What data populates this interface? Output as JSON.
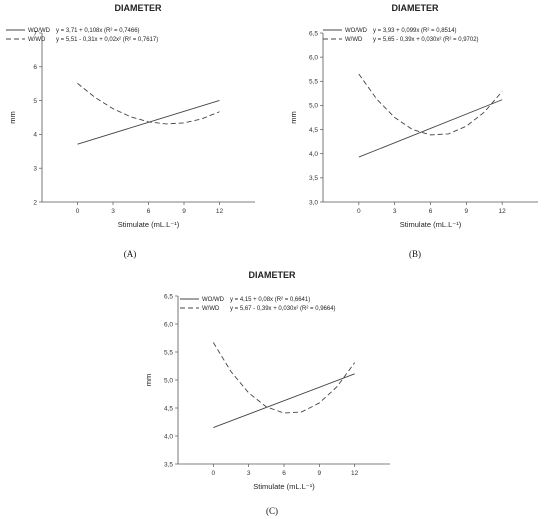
{
  "chart_data": [
    {
      "panel": "(A)",
      "type": "line",
      "title": "DIAMETER",
      "xlabel": "Stimulate (mL.L⁻¹)",
      "ylabel": "mm",
      "xticks": [
        0,
        3,
        6,
        9,
        12
      ],
      "ylim": [
        2,
        7
      ],
      "yticks": [
        "2",
        "3",
        "4",
        "5",
        "6",
        "7"
      ],
      "legend_position": "top-left",
      "series": [
        {
          "name": "WO/WD",
          "style": "solid",
          "equation": "y = 3,71 + 0,108x (R² = 0,7466)",
          "x": [
            0,
            12
          ],
          "y": [
            3.71,
            5.006
          ]
        },
        {
          "name": "W/WD",
          "style": "dashed",
          "equation": "y = 5,51 - 0,31x + 0,02x² (R² = 0,7617)",
          "x": [
            0,
            1.5,
            3,
            4.5,
            6,
            7.5,
            9,
            10.5,
            12
          ],
          "y": [
            5.51,
            5.09,
            4.76,
            4.52,
            4.37,
            4.31,
            4.34,
            4.46,
            4.67
          ]
        }
      ]
    },
    {
      "panel": "(B)",
      "type": "line",
      "title": "DIAMETER",
      "xlabel": "Stimulate (mL.L⁻¹)",
      "ylabel": "mm",
      "xticks": [
        0,
        3,
        6,
        9,
        12
      ],
      "ylim": [
        3.0,
        6.5
      ],
      "yticks": [
        "3,0",
        "3,5",
        "4,0",
        "4,5",
        "5,0",
        "5,5",
        "6,0",
        "6,5"
      ],
      "legend_position": "top-left",
      "series": [
        {
          "name": "WO/WD",
          "style": "solid",
          "equation": "y = 3,93 + 0,099x (R² = 0,8514)",
          "x": [
            0,
            12
          ],
          "y": [
            3.93,
            5.118
          ]
        },
        {
          "name": "W/WD",
          "style": "dashed",
          "equation": "y = 5,65 - 0,39x + 0,030x² (R² = 0,9702)",
          "x": [
            0,
            1.5,
            3,
            4.5,
            6,
            7.5,
            9,
            10.5,
            12
          ],
          "y": [
            5.65,
            5.13,
            4.75,
            4.5,
            4.39,
            4.41,
            4.57,
            4.86,
            5.29
          ]
        }
      ]
    },
    {
      "panel": "(C)",
      "type": "line",
      "title": "DIAMETER",
      "xlabel": "Stimulate (mL.L⁻¹)",
      "ylabel": "mm",
      "xticks": [
        0,
        3,
        6,
        9,
        12
      ],
      "ylim": [
        3.5,
        6.5
      ],
      "yticks": [
        "3,5",
        "4,0",
        "4,5",
        "5,0",
        "5,5",
        "6,0",
        "6,5"
      ],
      "legend_position": "top-left",
      "series": [
        {
          "name": "WO/WD",
          "style": "solid",
          "equation": "y = 4,15 + 0,08x (R² = 0,6641)",
          "x": [
            0,
            12
          ],
          "y": [
            4.15,
            5.11
          ]
        },
        {
          "name": "W/WD",
          "style": "dashed",
          "equation": "y = 5,67 - 0,39x + 0,030x² (R² = 0,9664)",
          "x": [
            0,
            1.5,
            3,
            4.5,
            6,
            7.5,
            9,
            10.5,
            12
          ],
          "y": [
            5.67,
            5.15,
            4.77,
            4.52,
            4.41,
            4.43,
            4.59,
            4.88,
            5.31
          ]
        }
      ]
    }
  ]
}
